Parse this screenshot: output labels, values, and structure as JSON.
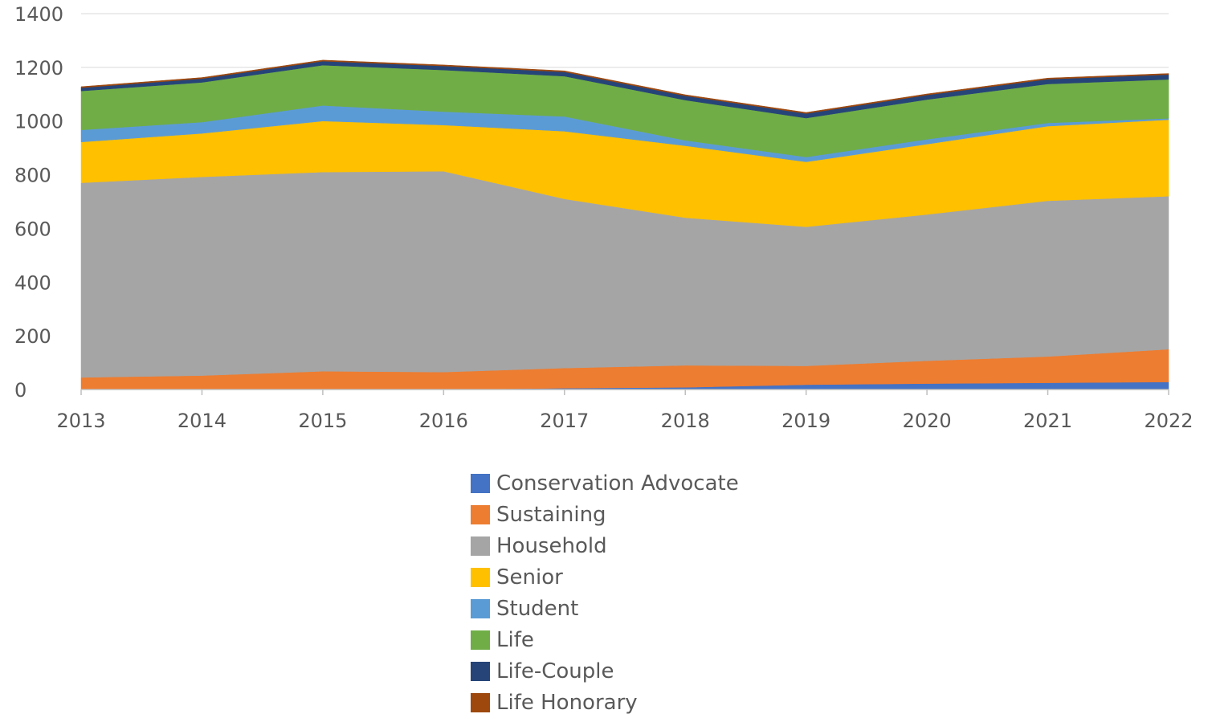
{
  "chart_data": {
    "type": "area",
    "stacked": true,
    "x": [
      "2013",
      "2014",
      "2015",
      "2016",
      "2017",
      "2018",
      "2019",
      "2020",
      "2021",
      "2022"
    ],
    "ylim": [
      0,
      1400
    ],
    "yticks": [
      "0",
      "200",
      "400",
      "600",
      "800",
      "1000",
      "1200",
      "1400"
    ],
    "grid": true,
    "legend_position": "bottom",
    "series": [
      {
        "name": "Conservation Advocate",
        "color": "#4472C4",
        "values": [
          0,
          0,
          0,
          0,
          5,
          8,
          18,
          22,
          25,
          28
        ]
      },
      {
        "name": "Sustaining",
        "color": "#ED7D31",
        "values": [
          45,
          52,
          68,
          65,
          75,
          82,
          70,
          85,
          98,
          122
        ]
      },
      {
        "name": "Household",
        "color": "#A5A5A5",
        "values": [
          725,
          740,
          742,
          748,
          630,
          550,
          518,
          545,
          580,
          570
        ]
      },
      {
        "name": "Senior",
        "color": "#FFC000",
        "values": [
          152,
          162,
          190,
          172,
          252,
          268,
          242,
          262,
          278,
          285
        ]
      },
      {
        "name": "Student",
        "color": "#5B9BD5",
        "values": [
          45,
          42,
          58,
          50,
          55,
          20,
          18,
          18,
          12,
          5
        ]
      },
      {
        "name": "Life",
        "color": "#70AD47",
        "values": [
          145,
          148,
          150,
          155,
          150,
          150,
          145,
          148,
          145,
          145
        ]
      },
      {
        "name": "Life-Couple",
        "color": "#264478",
        "values": [
          12,
          14,
          15,
          15,
          16,
          16,
          17,
          17,
          18,
          18
        ]
      },
      {
        "name": "Life Honorary",
        "color": "#9E480E",
        "values": [
          4,
          4,
          4,
          4,
          4,
          4,
          4,
          4,
          4,
          4
        ]
      }
    ]
  }
}
